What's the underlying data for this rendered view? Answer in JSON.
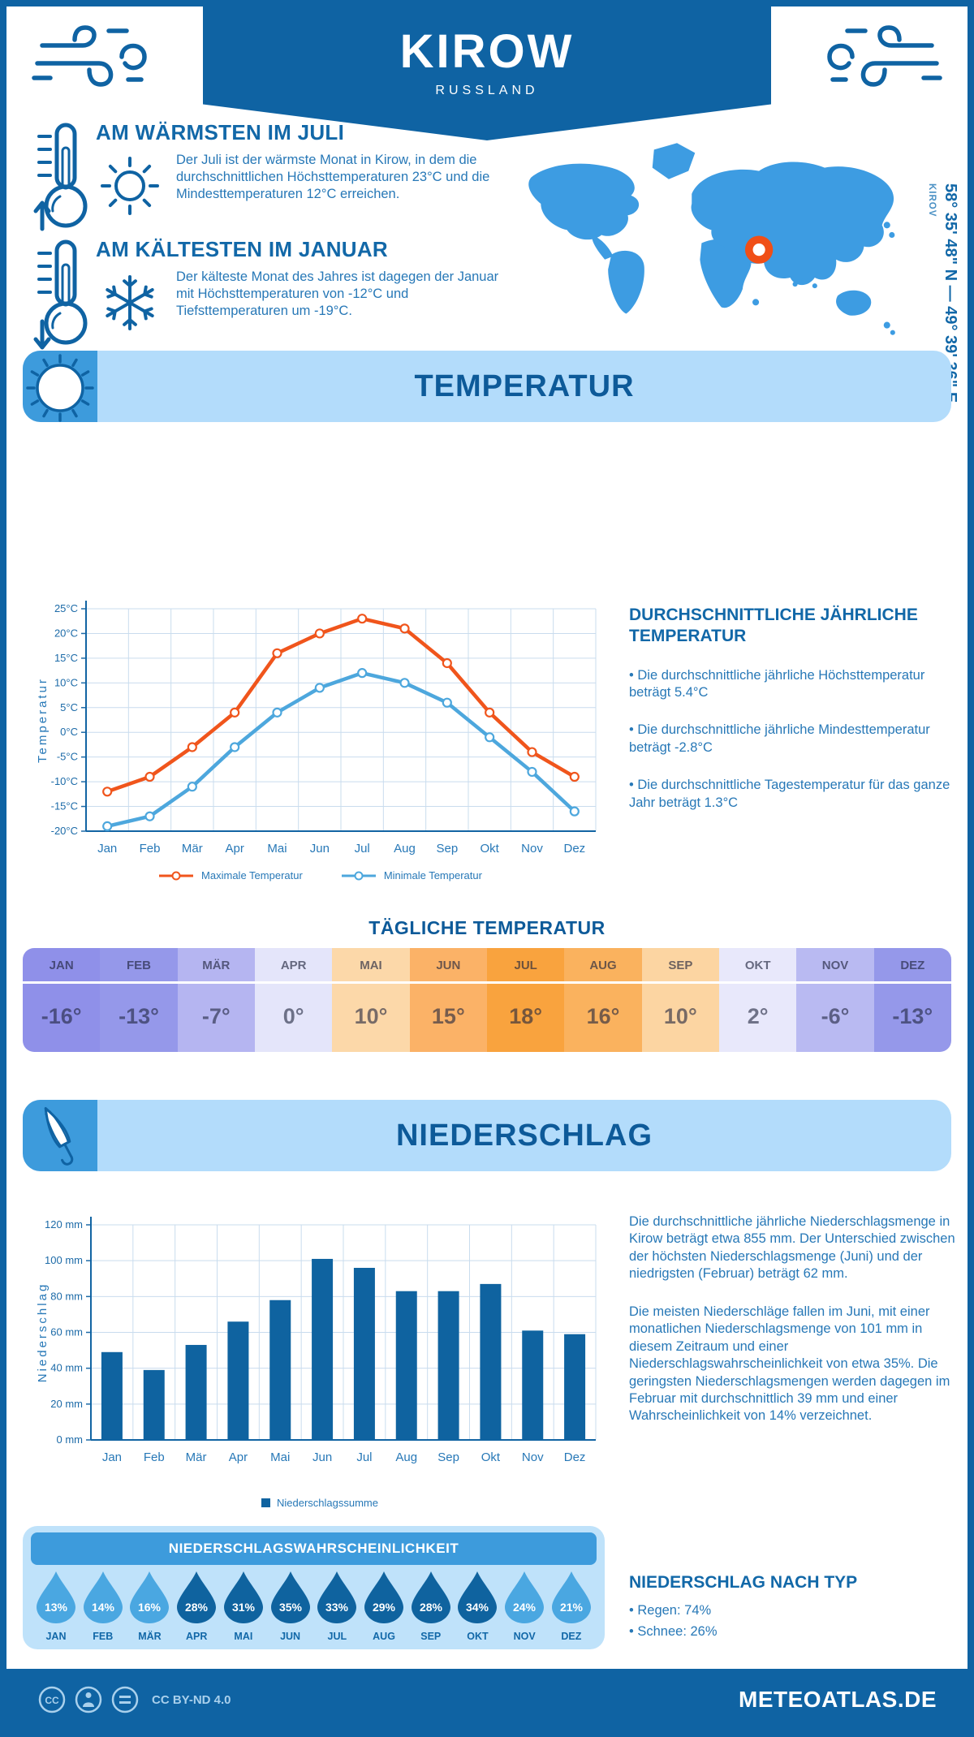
{
  "page": {
    "brand": "METEOATLAS.DE",
    "license": "CC BY-ND 4.0"
  },
  "header": {
    "city": "KIROW",
    "country": "RUSSLAND"
  },
  "location": {
    "name": "KIROV",
    "coordinates": "58° 35' 48\" N — 49° 39' 36\" E"
  },
  "highlights": {
    "warmest": {
      "title": "AM WÄRMSTEN IM JULI",
      "text": "Der Juli ist der wärmste Monat in Kirow, in dem die durchschnittlichen Höchsttemperaturen 23°C und die Mindesttemperaturen 12°C erreichen."
    },
    "coldest": {
      "title": "AM KÄLTESTEN IM JANUAR",
      "text": "Der kälteste Monat des Jahres ist dagegen der Januar mit Höchsttemperaturen von -12°C und Tiefsttemperaturen um -19°C."
    }
  },
  "temperature_section": {
    "title": "TEMPERATUR",
    "stats_title": "DURCHSCHNITTLICHE JÄHRLICHE TEMPERATUR",
    "stats": [
      "• Die durchschnittliche jährliche Höchsttemperatur beträgt 5.4°C",
      "• Die durchschnittliche jährliche Mindesttemperatur beträgt -2.8°C",
      "• Die durchschnittliche Tagestemperatur für das ganze Jahr beträgt 1.3°C"
    ],
    "daily_title": "TÄGLICHE TEMPERATUR"
  },
  "daily_table": {
    "months": [
      "JAN",
      "FEB",
      "MÄR",
      "APR",
      "MAI",
      "JUN",
      "JUL",
      "AUG",
      "SEP",
      "OKT",
      "NOV",
      "DEZ"
    ],
    "values": [
      "-16°",
      "-13°",
      "-7°",
      "0°",
      "10°",
      "15°",
      "18°",
      "16°",
      "10°",
      "2°",
      "-6°",
      "-13°"
    ],
    "colors": [
      "#8f90e9",
      "#9598ea",
      "#b5b5f1",
      "#e4e5fa",
      "#fcd8a9",
      "#fbb267",
      "#f9a33e",
      "#fab25e",
      "#fcd5a2",
      "#e8e8fb",
      "#b9baf2",
      "#9598ea"
    ]
  },
  "precipitation_section": {
    "title": "NIEDERSCHLAG",
    "text1": "Die durchschnittliche jährliche Niederschlagsmenge in Kirow beträgt etwa 855 mm. Der Unterschied zwischen der höchsten Niederschlagsmenge (Juni) und der niedrigsten (Februar) beträgt 62 mm.",
    "text2": "Die meisten Niederschläge fallen im Juni, mit einer monatlichen Niederschlagsmenge von 101 mm in diesem Zeitraum und einer Niederschlagswahrscheinlichkeit von etwa 35%. Die geringsten Niederschlagsmengen werden dagegen im Februar mit durchschnittlich 39 mm und einer Wahrscheinlichkeit von 14% verzeichnet.",
    "probability_title": "NIEDERSCHLAGSWAHRSCHEINLICHKEIT",
    "by_type_title": "NIEDERSCHLAG NACH TYP",
    "by_type": [
      "• Regen: 74%",
      "• Schnee: 26%"
    ]
  },
  "chart_data": [
    {
      "type": "line",
      "title": "",
      "ylabel": "Temperatur",
      "categories": [
        "Jan",
        "Feb",
        "Mär",
        "Apr",
        "Mai",
        "Jun",
        "Jul",
        "Aug",
        "Sep",
        "Okt",
        "Nov",
        "Dez"
      ],
      "series": [
        {
          "name": "Maximale Temperatur",
          "color": "#f0551c",
          "values": [
            -12,
            -9,
            -3,
            4,
            16,
            20,
            23,
            21,
            14,
            4,
            -4,
            -9
          ]
        },
        {
          "name": "Minimale Temperatur",
          "color": "#4da7dd",
          "values": [
            -19,
            -17,
            -11,
            -3,
            4,
            9,
            12,
            10,
            6,
            -1,
            -8,
            -16
          ]
        }
      ],
      "ylim": [
        -20,
        25
      ],
      "ytick_step": 5,
      "ytick_suffix": "°C",
      "grid": true,
      "legend_position": "bottom"
    },
    {
      "type": "bar",
      "title": "",
      "ylabel": "Niederschlag",
      "categories": [
        "Jan",
        "Feb",
        "Mär",
        "Apr",
        "Mai",
        "Jun",
        "Jul",
        "Aug",
        "Sep",
        "Okt",
        "Nov",
        "Dez"
      ],
      "values": [
        49,
        39,
        53,
        66,
        78,
        101,
        96,
        83,
        83,
        87,
        61,
        59
      ],
      "ylim": [
        0,
        120
      ],
      "ytick_step": 20,
      "ytick_suffix": " mm",
      "bar_color": "#0f63a0",
      "legend": "Niederschlagssumme",
      "grid": true,
      "legend_position": "bottom"
    }
  ],
  "precip_probability": {
    "months": [
      "JAN",
      "FEB",
      "MÄR",
      "APR",
      "MAI",
      "JUN",
      "JUL",
      "AUG",
      "SEP",
      "OKT",
      "NOV",
      "DEZ"
    ],
    "values": [
      "13%",
      "14%",
      "16%",
      "28%",
      "31%",
      "35%",
      "33%",
      "29%",
      "28%",
      "34%",
      "24%",
      "21%"
    ],
    "dark": [
      false,
      false,
      false,
      true,
      true,
      true,
      true,
      true,
      true,
      true,
      false,
      false
    ],
    "light_color": "#4aa7e1",
    "dark_color": "#0f639f"
  },
  "colors": {
    "primary": "#0f63a3",
    "heading": "#1268a8",
    "body_text": "#2778b7",
    "banner_bg": "#b3dcfb",
    "banner_icon_bg": "#3d9bdc",
    "map_fill": "#3d9ce2",
    "marker": "#f04f17"
  }
}
